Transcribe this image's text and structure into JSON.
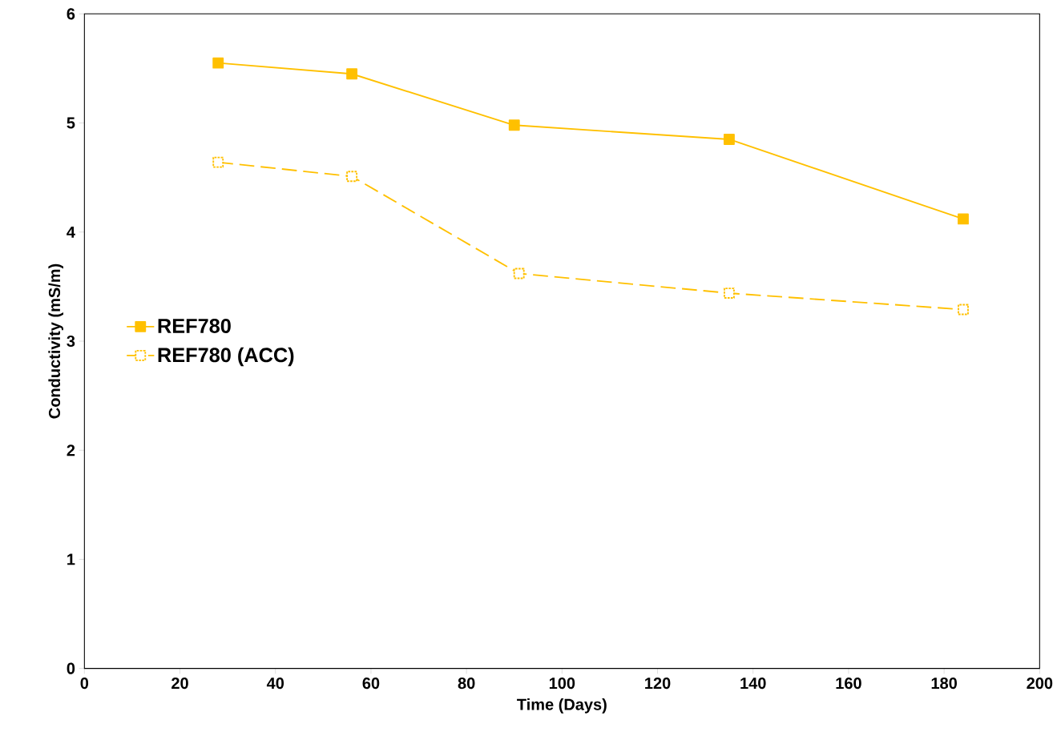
{
  "chart_data": {
    "type": "line",
    "xlabel": "Time (Days)",
    "ylabel": "Conductivity (mS/m)",
    "xlim": [
      0,
      200
    ],
    "xticks": [
      0,
      20,
      40,
      60,
      80,
      100,
      120,
      140,
      160,
      180,
      200
    ],
    "ylim": [
      0,
      6
    ],
    "yticks": [
      0,
      1,
      2,
      3,
      4,
      5,
      6
    ],
    "grid": false,
    "legend": "left",
    "marker": "square",
    "series": [
      {
        "name": "REF780",
        "color": "#ffc000",
        "line_style": "solid",
        "x": [
          28,
          56,
          90,
          135,
          184
        ],
        "values": [
          5.55,
          5.45,
          4.98,
          4.85,
          4.12
        ]
      },
      {
        "name": "REF780 (ACC)",
        "color": "#ffc000",
        "line_style": "dashed",
        "x": [
          28,
          56,
          91,
          135,
          184
        ],
        "values": [
          4.64,
          4.51,
          3.62,
          3.44,
          3.29
        ]
      }
    ]
  }
}
